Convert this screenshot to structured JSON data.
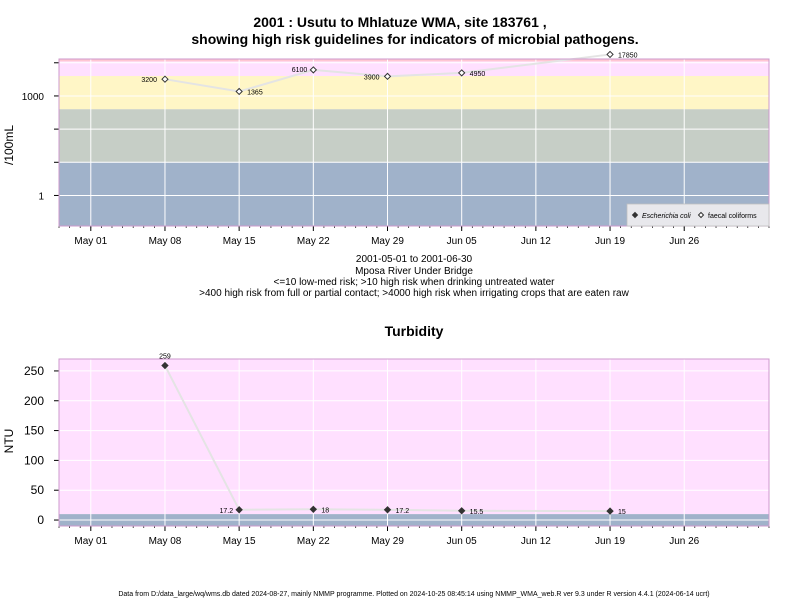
{
  "colors": {
    "band_pink": "#ffe0ff",
    "band_red": "#ffc6d2",
    "band_yellow": "#fff6c6",
    "band_green": "#c6cec6",
    "band_blue": "#a0b2ca",
    "grid": "#ffffff",
    "line": "#e4e4e4",
    "frame": "#cc99cc"
  },
  "footer": "Data from D:/data_large/wq/wms.db dated 2024-08-27, mainly NMMP programme. Plotted on 2024-10-25 08:45:14 using NMMP_WMA_web.R ver 9.3 under R version 4.4.1 (2024-06-14 ucrt)",
  "chart_data": [
    {
      "type": "scatter",
      "title": "2001 : Usutu to Mhlatuze WMA, site 183761 ,",
      "subtitle": "showing high risk guidelines for indicators of microbial pathogens.",
      "ylabel": "/100mL",
      "yscale": "log",
      "ytick_labels": [
        "1",
        "1000"
      ],
      "ylim": [
        0.12,
        13000
      ],
      "xlim": [
        "2001-04-28",
        "2001-07-04"
      ],
      "xtick_labels": [
        "May 01",
        "May 08",
        "May 15",
        "May 22",
        "May 29",
        "Jun 05",
        "Jun 12",
        "Jun 19",
        "Jun 26"
      ],
      "xtick_dates": [
        "2001-05-01",
        "2001-05-08",
        "2001-05-15",
        "2001-05-22",
        "2001-05-29",
        "2001-06-05",
        "2001-06-12",
        "2001-06-19",
        "2001-06-26"
      ],
      "bands": [
        {
          "from": 0.12,
          "to": 10,
          "color": "band_blue"
        },
        {
          "from": 10,
          "to": 400,
          "color": "band_green"
        },
        {
          "from": 400,
          "to": 4000,
          "color": "band_yellow"
        },
        {
          "from": 4000,
          "to": 11000,
          "color": "band_pink"
        },
        {
          "from": 11000,
          "to": 13000,
          "color": "band_red"
        }
      ],
      "below_axis": [
        "2001-05-01 to 2001-06-30",
        "Mposa River Under Bridge",
        "<=10 low-med risk; >10 high risk when drinking untreated water",
        ">400 high risk from full or partial contact; >4000 high risk when irrigating crops that are eaten raw"
      ],
      "legend_position": "bottom-right",
      "series": [
        {
          "name": "Escherichia coli",
          "marker": "filled-diamond",
          "x": [],
          "y": []
        },
        {
          "name": "faecal coliforms",
          "marker": "open-diamond",
          "x": [
            "2001-05-08",
            "2001-05-15",
            "2001-05-22",
            "2001-05-29",
            "2001-06-05",
            "2001-06-19"
          ],
          "y": [
            3200,
            1365,
            6100,
            3900,
            4950,
            17850
          ],
          "labels": [
            "3200",
            "1365",
            "6100",
            "3900",
            "4950",
            "17850"
          ]
        }
      ]
    },
    {
      "type": "scatter",
      "title": "Turbidity",
      "ylabel": "NTU",
      "ylim": [
        -10,
        270
      ],
      "yticks": [
        0,
        50,
        100,
        150,
        200,
        250
      ],
      "xlim": [
        "2001-04-28",
        "2001-07-04"
      ],
      "xtick_labels": [
        "May 01",
        "May 08",
        "May 15",
        "May 22",
        "May 29",
        "Jun 05",
        "Jun 12",
        "Jun 19",
        "Jun 26"
      ],
      "xtick_dates": [
        "2001-05-01",
        "2001-05-08",
        "2001-05-15",
        "2001-05-22",
        "2001-05-29",
        "2001-06-05",
        "2001-06-12",
        "2001-06-19",
        "2001-06-26"
      ],
      "bands": [
        {
          "from": -10,
          "to": 10,
          "color": "band_blue"
        },
        {
          "from": 10,
          "to": 270,
          "color": "band_pink"
        }
      ],
      "series": [
        {
          "marker": "filled-diamond",
          "x": [
            "2001-05-08",
            "2001-05-15",
            "2001-05-22",
            "2001-05-29",
            "2001-06-05",
            "2001-06-19"
          ],
          "y": [
            259,
            17.2,
            18,
            17.2,
            15.5,
            15
          ],
          "labels": [
            "259",
            "17.2",
            "18",
            "17.2",
            "15.5",
            "15"
          ]
        }
      ]
    }
  ]
}
